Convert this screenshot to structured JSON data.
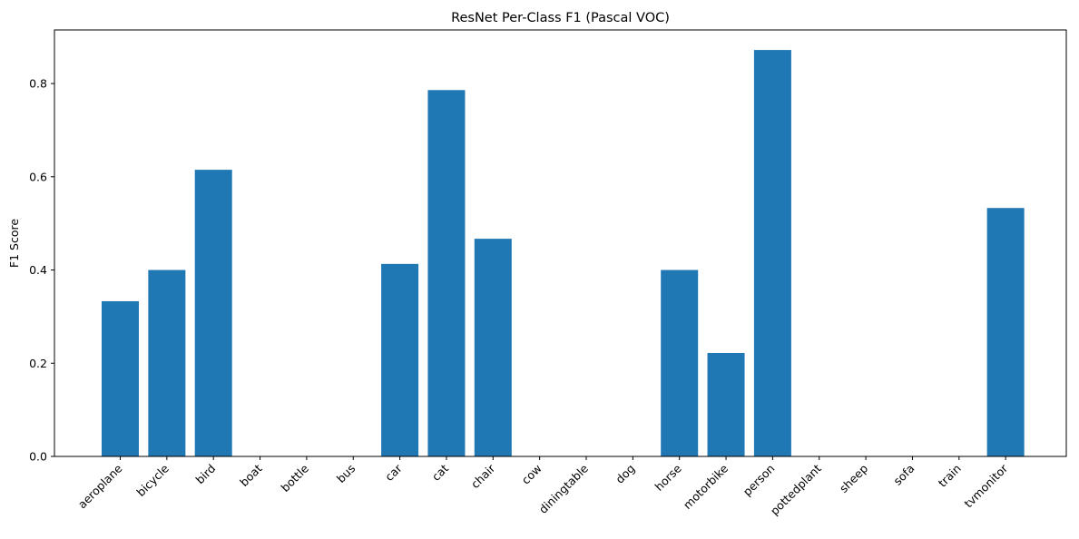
{
  "chart_data": {
    "type": "bar",
    "title": "ResNet Per-Class F1 (Pascal VOC)",
    "xlabel": "",
    "ylabel": "F1 Score",
    "ylim": [
      0,
      0.915
    ],
    "yticks": [
      "0.0",
      "0.2",
      "0.4",
      "0.6",
      "0.8"
    ],
    "ytick_values": [
      0.0,
      0.2,
      0.4,
      0.6,
      0.8
    ],
    "categories": [
      "aeroplane",
      "bicycle",
      "bird",
      "boat",
      "bottle",
      "bus",
      "car",
      "cat",
      "chair",
      "cow",
      "diningtable",
      "dog",
      "horse",
      "motorbike",
      "person",
      "pottedplant",
      "sheep",
      "sofa",
      "train",
      "tvmonitor"
    ],
    "values": [
      0.333,
      0.4,
      0.615,
      0,
      0,
      0,
      0.413,
      0.786,
      0.467,
      0,
      0,
      0,
      0.4,
      0.222,
      0.872,
      0,
      0,
      0,
      0,
      0.533
    ],
    "bar_color": "#1f77b4",
    "grid": false,
    "legend": false
  }
}
